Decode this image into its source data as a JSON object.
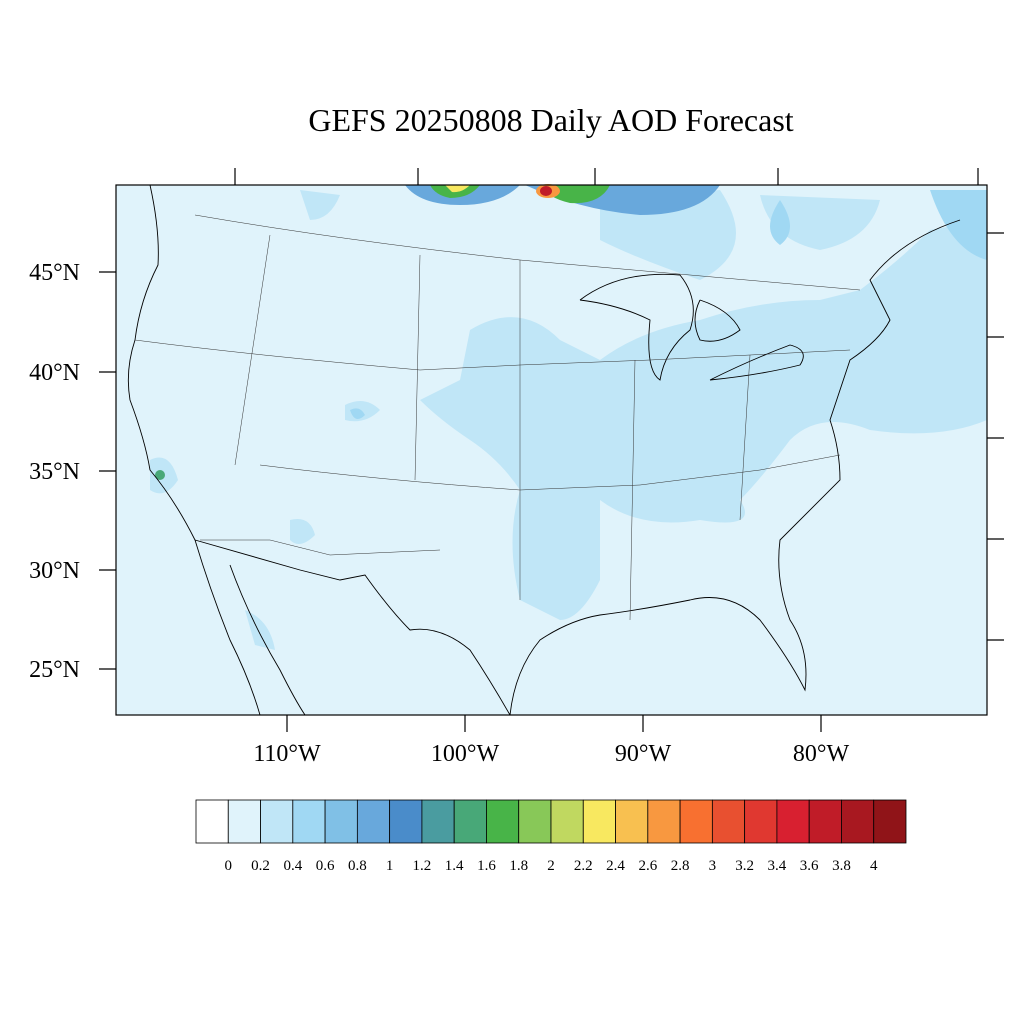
{
  "map": {
    "title": "GEFS 20250808 Daily AOD Forecast",
    "lat_labels": [
      "45°N",
      "40°N",
      "35°N",
      "30°N",
      "25°N"
    ],
    "lon_labels": [
      "110°W",
      "100°W",
      "90°W",
      "80°W"
    ],
    "colorbar": {
      "levels": [
        0,
        0.2,
        0.4,
        0.6,
        0.8,
        1,
        1.2,
        1.4,
        1.6,
        1.8,
        2,
        2.2,
        2.4,
        2.6,
        2.8,
        3,
        3.2,
        3.4,
        3.6,
        3.8,
        4
      ],
      "colors": [
        "#ffffff",
        "#e0f3fb",
        "#c0e6f7",
        "#a0d8f3",
        "#80c0e6",
        "#68a8dc",
        "#4a8cca",
        "#4a9ca0",
        "#48a878",
        "#48b448",
        "#88c858",
        "#c0d860",
        "#f8e860",
        "#f8c050",
        "#f89840",
        "#f87030",
        "#e85030",
        "#e03830",
        "#d82030",
        "#c01c28",
        "#a81820",
        "#901418"
      ]
    }
  }
}
